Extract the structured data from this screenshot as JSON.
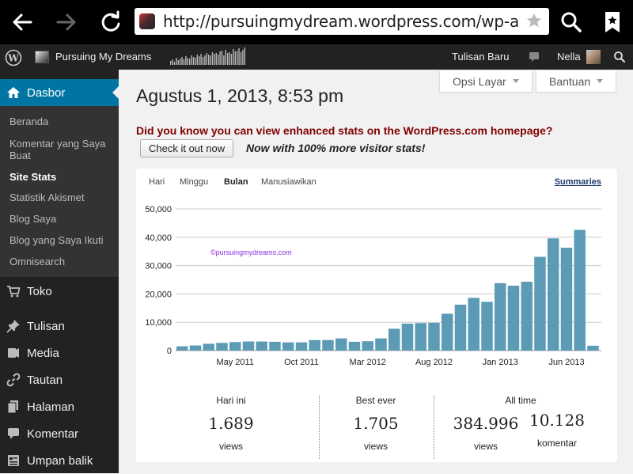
{
  "browser": {
    "url": "http://pursuingmydream.wordpress.com/wp-admin/index.php"
  },
  "admin_bar": {
    "site_name": "Pursuing My Dreams",
    "new_post": "Tulisan Baru",
    "user": "Nella"
  },
  "sidebar": {
    "dashboard": "Dasbor",
    "sub_items": [
      "Beranda",
      "Komentar yang Saya Buat",
      "Site Stats",
      "Statistik Akismet",
      "Blog Saya",
      "Blog yang Saya Ikuti",
      "Omnisearch"
    ],
    "menu": [
      "Toko",
      "Tulisan",
      "Media",
      "Tautan",
      "Halaman",
      "Komentar",
      "Umpan balik"
    ]
  },
  "header": {
    "title": "Agustus 1, 2013, 8:53 pm",
    "screen_options": "Opsi Layar",
    "help": "Bantuan"
  },
  "promo": {
    "text": "Did you know you can view enhanced stats on the WordPress.com homepage?",
    "button": "Check it out now",
    "tagline": "Now with 100% more visitor stats!"
  },
  "stats": {
    "tabs": [
      "Hari",
      "Minggu",
      "Bulan",
      "Manusiawikan"
    ],
    "active_tab": "Bulan",
    "summaries": "Summaries",
    "watermark": "©pursuingmydreams.com",
    "today_label": "Hari ini",
    "today_value": "1.689",
    "today_unit": "views",
    "best_label": "Best ever",
    "best_value": "1.705",
    "best_unit": "views",
    "alltime_label": "All time",
    "alltime_views": "384.996",
    "alltime_views_unit": "views",
    "alltime_comments": "10.128",
    "alltime_comments_unit": "komentar"
  },
  "chart_data": {
    "type": "bar",
    "y_ticks": [
      "50,000",
      "40,000",
      "30,000",
      "20,000",
      "10,000",
      "0"
    ],
    "ylim": [
      0,
      50000
    ],
    "x_tick_labels": [
      {
        "label": "May 2011",
        "index": 4
      },
      {
        "label": "Oct 2011",
        "index": 9
      },
      {
        "label": "Mar 2012",
        "index": 14
      },
      {
        "label": "Aug 2012",
        "index": 19
      },
      {
        "label": "Jan 2013",
        "index": 24
      },
      {
        "label": "Jun 2013",
        "index": 29
      }
    ],
    "values": [
      1500,
      1800,
      2400,
      2700,
      3000,
      3200,
      3200,
      3100,
      2900,
      2900,
      3700,
      3700,
      4300,
      3100,
      3300,
      4300,
      7700,
      9500,
      9700,
      9800,
      13000,
      16200,
      18600,
      17200,
      23800,
      22900,
      24300,
      33100,
      39600,
      36300,
      42600,
      1700
    ],
    "color": "#5b9bb6",
    "grid": true
  },
  "colors": {
    "accent": "#0074a2",
    "promo": "#800000"
  }
}
